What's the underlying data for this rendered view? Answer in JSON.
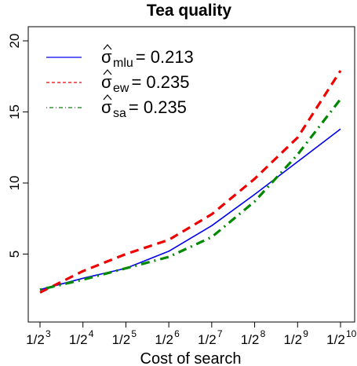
{
  "chart_data": {
    "type": "line",
    "title": "Tea quality",
    "xlabel": "Cost of search",
    "ylabel": "",
    "x_ticks": [
      {
        "base": "1/2",
        "exp": "3"
      },
      {
        "base": "1/2",
        "exp": "4"
      },
      {
        "base": "1/2",
        "exp": "5"
      },
      {
        "base": "1/2",
        "exp": "6"
      },
      {
        "base": "1/2",
        "exp": "7"
      },
      {
        "base": "1/2",
        "exp": "8"
      },
      {
        "base": "1/2",
        "exp": "9"
      },
      {
        "base": "1/2",
        "exp": "10"
      }
    ],
    "y_ticks": [
      "5",
      "10",
      "15",
      "20"
    ],
    "ylim": [
      0,
      20
    ],
    "grid": false,
    "legend_position": "top-left",
    "series": [
      {
        "name": "mlu",
        "legend_sym": "σ",
        "legend_sub": "mlu",
        "legend_val": "= 0.213",
        "color": "#0000ee",
        "style": "solid",
        "values": [
          2.5,
          3.3,
          4.0,
          5.2,
          7.0,
          9.2,
          11.5,
          13.8
        ]
      },
      {
        "name": "ew",
        "legend_sym": "σ",
        "legend_sub": "ew",
        "legend_val": "= 0.235",
        "color": "#ee0000",
        "style": "dashed",
        "values": [
          2.3,
          3.8,
          5.0,
          6.0,
          7.8,
          10.3,
          13.2,
          17.9
        ]
      },
      {
        "name": "sa",
        "legend_sym": "σ",
        "legend_sub": "sa",
        "legend_val": "= 0.235",
        "color": "#008800",
        "style": "dotdash",
        "values": [
          2.5,
          3.2,
          4.0,
          4.8,
          6.2,
          8.7,
          12.0,
          15.9
        ]
      }
    ]
  }
}
